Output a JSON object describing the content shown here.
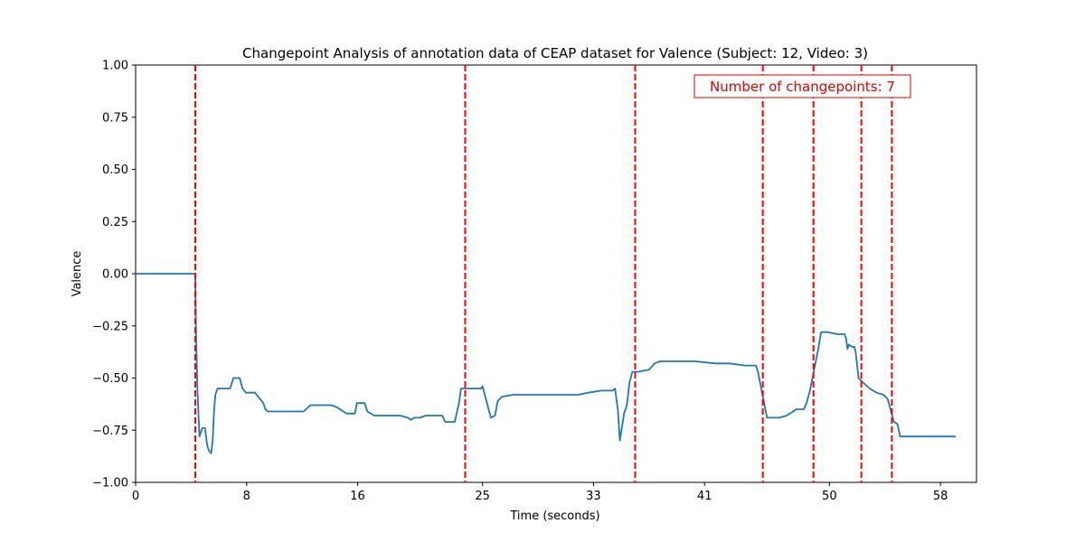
{
  "chart_data": {
    "type": "line",
    "title": "Changepoint Analysis of annotation data of CEAP dataset for Valence (Subject: 12, Video: 3)",
    "xlabel": "Time (seconds)",
    "ylabel": "Valence",
    "xlim": [
      0,
      60.6
    ],
    "ylim": [
      -1.0,
      1.0
    ],
    "x_ticks": [
      0,
      8,
      16,
      25,
      33,
      41,
      50,
      58
    ],
    "x_tick_labels": [
      "0",
      "8",
      "16",
      "25",
      "33",
      "41",
      "50",
      "58"
    ],
    "y_ticks": [
      1.0,
      0.75,
      0.5,
      0.25,
      0.0,
      -0.25,
      -0.5,
      -0.75,
      -1.0
    ],
    "y_tick_labels": [
      "1.00",
      "0.75",
      "0.50",
      "0.25",
      "0.00",
      "−0.25",
      "−0.50",
      "−0.75",
      "−1.00"
    ],
    "grid": false,
    "series": [
      {
        "color": "#1f77b4",
        "x": [
          0,
          4.3,
          4.35,
          4.45,
          4.6,
          4.8,
          5.0,
          5.15,
          5.3,
          5.45,
          5.55,
          5.65,
          5.75,
          5.9,
          6.2,
          6.8,
          7.05,
          7.2,
          7.5,
          7.7,
          7.95,
          8.2,
          8.6,
          9.2,
          9.35,
          9.55,
          9.9,
          10.8,
          11.6,
          12.1,
          12.6,
          13.4,
          14.1,
          14.5,
          15.2,
          15.8,
          15.95,
          16.5,
          16.7,
          17.2,
          17.6,
          18.3,
          19.1,
          19.6,
          19.85,
          20.1,
          20.5,
          20.9,
          21.1,
          22.1,
          22.3,
          22.6,
          23.0,
          23.3,
          23.45,
          23.6,
          23.8,
          24.2,
          24.9,
          25.0,
          25.2,
          25.6,
          25.9,
          26.1,
          26.4,
          27.2,
          28.4,
          30.4,
          31.9,
          32.6,
          33.6,
          34.1,
          34.4,
          34.55,
          34.75,
          34.9,
          35.2,
          35.4,
          35.6,
          35.8,
          36.2,
          37.0,
          37.4,
          37.8,
          38.4,
          39.0,
          40.3,
          41.8,
          42.8,
          43.9,
          44.3,
          44.5,
          44.7,
          44.85,
          45.5,
          45.9,
          46.4,
          46.9,
          47.4,
          47.6,
          47.85,
          48.15,
          48.35,
          48.6,
          49.2,
          49.4,
          49.9,
          50.6,
          51.1,
          51.2,
          51.3,
          51.4,
          51.6,
          51.8,
          51.9,
          52.1,
          52.4,
          52.9,
          53.4,
          53.9,
          54.2,
          54.4,
          54.65,
          54.9,
          55.1,
          55.3,
          56.0,
          57.0,
          58.0,
          59.1
        ],
        "y": [
          0.0,
          0.0,
          -0.28,
          -0.55,
          -0.78,
          -0.74,
          -0.74,
          -0.82,
          -0.85,
          -0.86,
          -0.8,
          -0.66,
          -0.58,
          -0.55,
          -0.55,
          -0.55,
          -0.5,
          -0.5,
          -0.5,
          -0.55,
          -0.57,
          -0.57,
          -0.57,
          -0.62,
          -0.65,
          -0.66,
          -0.66,
          -0.66,
          -0.66,
          -0.66,
          -0.63,
          -0.63,
          -0.63,
          -0.64,
          -0.67,
          -0.67,
          -0.62,
          -0.62,
          -0.66,
          -0.68,
          -0.68,
          -0.68,
          -0.68,
          -0.69,
          -0.7,
          -0.69,
          -0.69,
          -0.68,
          -0.68,
          -0.68,
          -0.71,
          -0.71,
          -0.71,
          -0.62,
          -0.55,
          -0.55,
          -0.55,
          -0.55,
          -0.55,
          -0.54,
          -0.59,
          -0.69,
          -0.68,
          -0.61,
          -0.59,
          -0.58,
          -0.58,
          -0.58,
          -0.58,
          -0.57,
          -0.56,
          -0.56,
          -0.56,
          -0.55,
          -0.65,
          -0.8,
          -0.67,
          -0.63,
          -0.52,
          -0.47,
          -0.47,
          -0.46,
          -0.43,
          -0.42,
          -0.42,
          -0.42,
          -0.42,
          -0.43,
          -0.43,
          -0.44,
          -0.44,
          -0.44,
          -0.44,
          -0.47,
          -0.69,
          -0.69,
          -0.69,
          -0.68,
          -0.66,
          -0.65,
          -0.65,
          -0.65,
          -0.62,
          -0.56,
          -0.36,
          -0.28,
          -0.28,
          -0.29,
          -0.29,
          -0.31,
          -0.36,
          -0.34,
          -0.35,
          -0.35,
          -0.38,
          -0.5,
          -0.52,
          -0.55,
          -0.57,
          -0.58,
          -0.6,
          -0.65,
          -0.71,
          -0.72,
          -0.78,
          -0.78,
          -0.78,
          -0.78,
          -0.78,
          -0.78
        ]
      }
    ],
    "changepoints": [
      4.3,
      23.75,
      36.0,
      45.2,
      48.85,
      52.3,
      54.5
    ],
    "changepoint_style": {
      "color": "#ff0000",
      "linestyle": "dashed"
    },
    "annotation": {
      "text": "Number of changepoints: 7",
      "color": "#e00000",
      "location": "top-right"
    }
  }
}
